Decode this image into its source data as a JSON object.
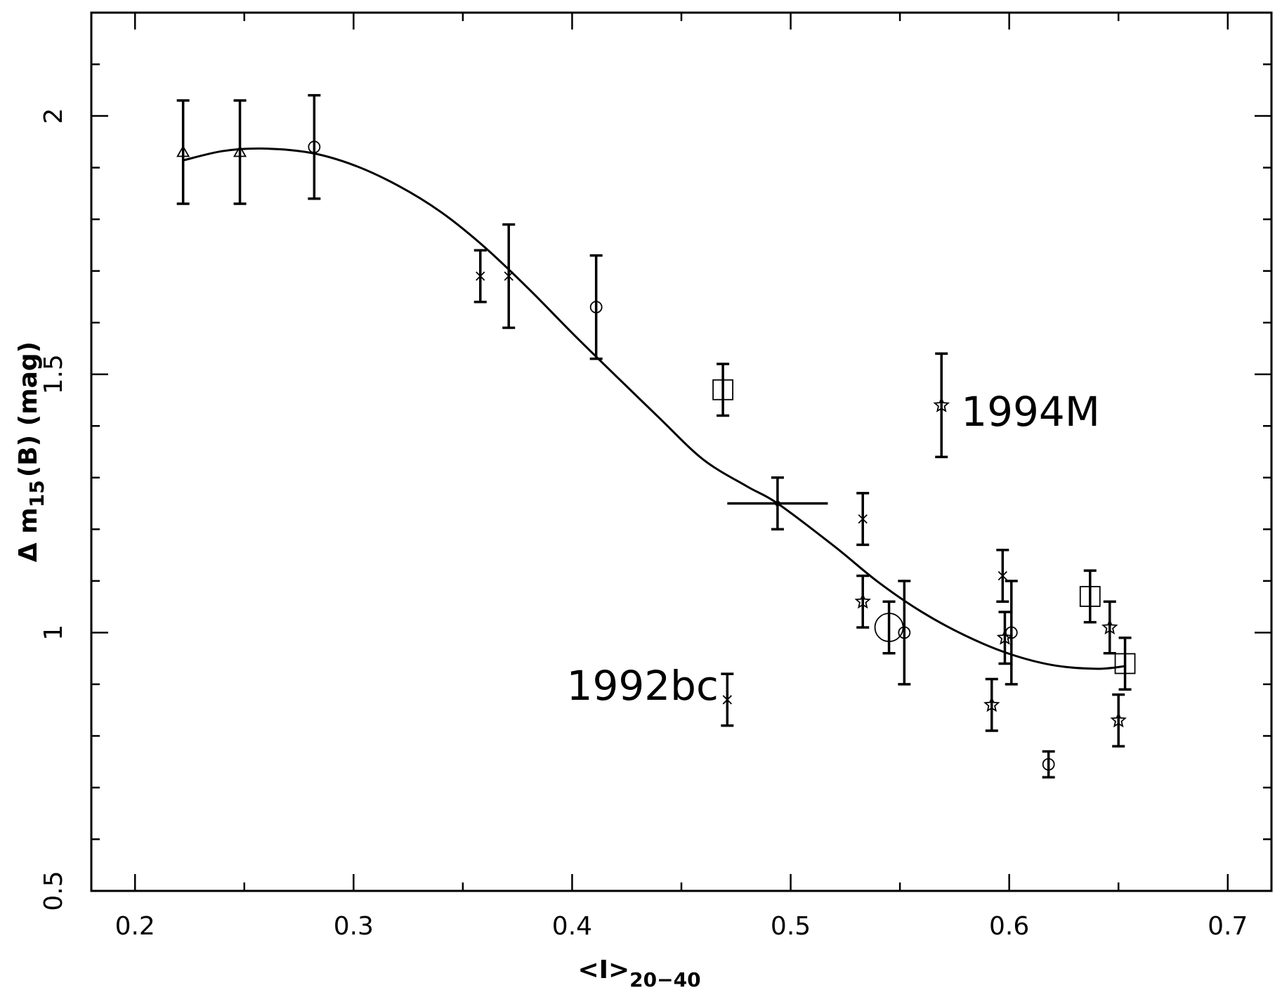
{
  "chart_data": {
    "type": "scatter",
    "xlabel": {
      "main": "<I>",
      "sub": "20−40"
    },
    "ylabel": {
      "prefix": "Δ m",
      "sub": "15",
      "suffix": "(B)  (mag)"
    },
    "xlim": [
      0.18,
      0.72
    ],
    "ylim": [
      0.5,
      2.2
    ],
    "xticks": [
      0.2,
      0.3,
      0.4,
      0.5,
      0.6,
      0.7
    ],
    "xtick_labels": [
      "0.2",
      "0.3",
      "0.4",
      "0.5",
      "0.6",
      "0.7"
    ],
    "yticks": [
      0.5,
      1,
      1.5,
      2
    ],
    "ytick_labels": [
      "0.5",
      "1",
      "1.5",
      "2"
    ],
    "x_minor_step": 0.05,
    "y_minor_step": 0.1,
    "grid": false,
    "legend": "none",
    "annotations": [
      {
        "text": "1994M",
        "x": 0.578,
        "y": 1.4
      },
      {
        "text": "1992bc",
        "x": 0.467,
        "y": 0.87
      }
    ],
    "points": [
      {
        "x": 0.222,
        "y": 1.93,
        "yerr": 0.1,
        "marker": "triangle"
      },
      {
        "x": 0.248,
        "y": 1.93,
        "yerr": 0.1,
        "marker": "triangle"
      },
      {
        "x": 0.282,
        "y": 1.94,
        "yerr": 0.1,
        "marker": "circle"
      },
      {
        "x": 0.358,
        "y": 1.69,
        "yerr": 0.05,
        "marker": "cross"
      },
      {
        "x": 0.371,
        "y": 1.69,
        "yerr": 0.1,
        "marker": "cross"
      },
      {
        "x": 0.411,
        "y": 1.63,
        "yerr": 0.1,
        "marker": "circle"
      },
      {
        "x": 0.469,
        "y": 1.47,
        "yerr": 0.05,
        "marker": "square"
      },
      {
        "x": 0.471,
        "y": 0.87,
        "yerr": 0.05,
        "marker": "cross"
      },
      {
        "x": 0.494,
        "y": 1.25,
        "yerr": 0.05,
        "xerr": 0.023,
        "marker": "dot"
      },
      {
        "x": 0.533,
        "y": 1.22,
        "yerr": 0.05,
        "marker": "cross"
      },
      {
        "x": 0.533,
        "y": 1.06,
        "yerr": 0.05,
        "marker": "star"
      },
      {
        "x": 0.545,
        "y": 1.01,
        "yerr": 0.05,
        "marker": "big-circle"
      },
      {
        "x": 0.552,
        "y": 1.0,
        "yerr": 0.1,
        "marker": "circle"
      },
      {
        "x": 0.569,
        "y": 1.44,
        "yerr": 0.1,
        "marker": "star"
      },
      {
        "x": 0.592,
        "y": 0.86,
        "yerr": 0.05,
        "marker": "star"
      },
      {
        "x": 0.597,
        "y": 1.11,
        "yerr": 0.05,
        "marker": "cross"
      },
      {
        "x": 0.598,
        "y": 0.99,
        "yerr": 0.05,
        "marker": "star"
      },
      {
        "x": 0.601,
        "y": 1.0,
        "yerr": 0.1,
        "marker": "circle"
      },
      {
        "x": 0.618,
        "y": 0.745,
        "yerr": 0.025,
        "marker": "circle"
      },
      {
        "x": 0.637,
        "y": 1.07,
        "yerr": 0.05,
        "marker": "square"
      },
      {
        "x": 0.646,
        "y": 1.01,
        "yerr": 0.05,
        "marker": "star"
      },
      {
        "x": 0.65,
        "y": 0.83,
        "yerr": 0.05,
        "marker": "star"
      },
      {
        "x": 0.653,
        "y": 0.94,
        "yerr": 0.05,
        "marker": "square"
      }
    ],
    "fit_curve": [
      [
        0.222,
        1.914
      ],
      [
        0.24,
        1.932
      ],
      [
        0.258,
        1.937
      ],
      [
        0.28,
        1.929
      ],
      [
        0.3,
        1.905
      ],
      [
        0.32,
        1.866
      ],
      [
        0.34,
        1.814
      ],
      [
        0.36,
        1.746
      ],
      [
        0.38,
        1.666
      ],
      [
        0.4,
        1.58
      ],
      [
        0.42,
        1.497
      ],
      [
        0.44,
        1.415
      ],
      [
        0.46,
        1.335
      ],
      [
        0.48,
        1.283
      ],
      [
        0.494,
        1.25
      ],
      [
        0.52,
        1.167
      ],
      [
        0.54,
        1.098
      ],
      [
        0.56,
        1.04
      ],
      [
        0.58,
        0.994
      ],
      [
        0.6,
        0.959
      ],
      [
        0.62,
        0.937
      ],
      [
        0.64,
        0.93
      ],
      [
        0.653,
        0.935
      ]
    ]
  }
}
